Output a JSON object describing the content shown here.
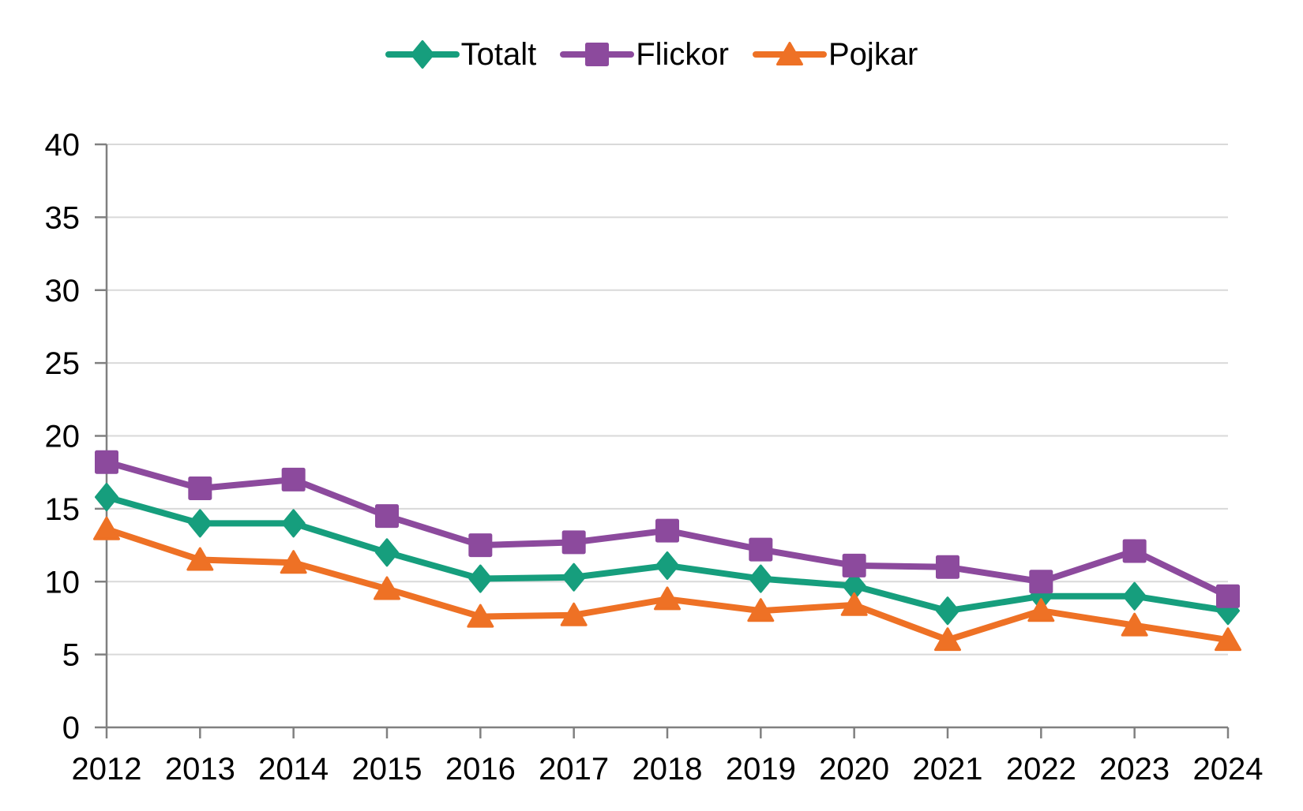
{
  "chart_data": {
    "type": "line",
    "title": "",
    "xlabel": "",
    "ylabel": "",
    "x": [
      "2012",
      "2013",
      "2014",
      "2015",
      "2016",
      "2017",
      "2018",
      "2019",
      "2020",
      "2021",
      "2022",
      "2023",
      "2024"
    ],
    "series": [
      {
        "name": "Totalt",
        "marker": "diamond",
        "color": "#169E7D",
        "values": [
          15.8,
          14.0,
          14.0,
          12.0,
          10.2,
          10.3,
          11.1,
          10.2,
          9.7,
          8.0,
          9.0,
          9.0,
          8.0
        ]
      },
      {
        "name": "Flickor",
        "marker": "square",
        "color": "#8C4A9D",
        "values": [
          18.2,
          16.4,
          17.0,
          14.5,
          12.5,
          12.7,
          13.5,
          12.2,
          11.1,
          11.0,
          10.0,
          12.1,
          9.0
        ]
      },
      {
        "name": "Pojkar",
        "marker": "triangle",
        "color": "#EE7125",
        "values": [
          13.6,
          11.5,
          11.3,
          9.5,
          7.6,
          7.7,
          8.8,
          8.0,
          8.4,
          6.0,
          8.0,
          7.0,
          6.0
        ]
      }
    ],
    "ylim": [
      0,
      40
    ],
    "yticks": [
      0,
      5,
      10,
      15,
      20,
      25,
      30,
      35,
      40
    ],
    "grid": true,
    "legend_position": "top-center",
    "colors": {
      "gridline": "#D9D9D9",
      "axis": "#808080",
      "text": "#000000",
      "background": "#FFFFFF"
    }
  }
}
